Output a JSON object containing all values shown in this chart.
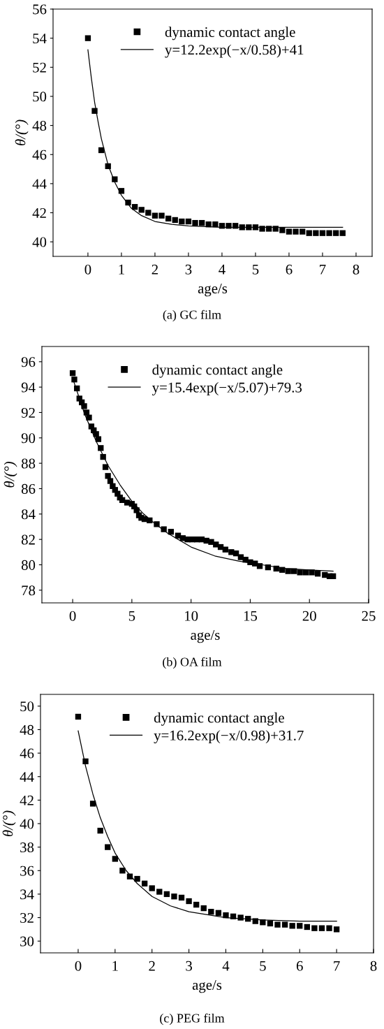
{
  "chart_data": [
    {
      "type": "scatter",
      "xlabel": "age/s",
      "ylabel": "θ/(°)",
      "xlim": [
        -1.04,
        8.48
      ],
      "ylim": [
        39,
        56
      ],
      "xticks": [
        0,
        1,
        2,
        3,
        4,
        5,
        6,
        7,
        8
      ],
      "yticks": [
        40,
        42,
        44,
        46,
        48,
        50,
        52,
        54,
        56
      ],
      "legend": "top",
      "grid": false,
      "annotations": [
        "(a) GC film"
      ],
      "series": [
        {
          "name": "dynamic contact angle",
          "marker": "square",
          "color": "#000000",
          "x": [
            0,
            0.2,
            0.4,
            0.6,
            0.8,
            1.0,
            1.2,
            1.4,
            1.6,
            1.8,
            2.0,
            2.2,
            2.4,
            2.6,
            2.8,
            3.0,
            3.2,
            3.4,
            3.6,
            3.8,
            4.0,
            4.2,
            4.4,
            4.6,
            4.8,
            5.0,
            5.2,
            5.4,
            5.6,
            5.8,
            6.0,
            6.2,
            6.4,
            6.6,
            6.8,
            7.0,
            7.2,
            7.4,
            7.6
          ],
          "values": [
            54,
            49,
            46.3,
            45.2,
            44.3,
            43.5,
            42.7,
            42.4,
            42.2,
            42.0,
            41.8,
            41.8,
            41.6,
            41.5,
            41.4,
            41.4,
            41.3,
            41.3,
            41.2,
            41.2,
            41.1,
            41.1,
            41.1,
            41.0,
            41.0,
            41.0,
            40.9,
            40.9,
            40.9,
            40.8,
            40.7,
            40.7,
            40.7,
            40.6,
            40.6,
            40.6,
            40.6,
            40.6,
            40.6
          ]
        },
        {
          "name": "y=12.2exp(−x/0.58)+41",
          "type": "line",
          "marker": "none",
          "line_style": "solid",
          "color": "#000000",
          "x": [
            0,
            0.1,
            0.2,
            0.3,
            0.4,
            0.6,
            0.8,
            1.0,
            1.3,
            1.6,
            2.0,
            2.5,
            3.0,
            4.0,
            5.0,
            7.6
          ],
          "values": [
            53.2,
            51.3,
            49.6,
            48.3,
            47.1,
            45.3,
            44.1,
            43.2,
            42.3,
            41.8,
            41.4,
            41.2,
            41.1,
            41.0,
            41.0,
            41.0
          ]
        }
      ]
    },
    {
      "type": "scatter",
      "xlabel": "age/s",
      "ylabel": "θ/(°)",
      "xlim": [
        -2.6,
        25
      ],
      "ylim": [
        77,
        97.2
      ],
      "xticks": [
        0,
        5,
        10,
        15,
        20,
        25
      ],
      "yticks": [
        78,
        80,
        82,
        84,
        86,
        88,
        90,
        92,
        94,
        96
      ],
      "legend": "top",
      "grid": false,
      "annotations": [
        "(b) OA film"
      ],
      "series": [
        {
          "name": "dynamic contact angle",
          "marker": "square",
          "color": "#000000",
          "x": [
            0,
            0.14,
            0.36,
            0.57,
            0.77,
            0.97,
            1.17,
            1.38,
            1.58,
            1.78,
            1.98,
            2.17,
            2.37,
            2.57,
            2.77,
            2.98,
            3.18,
            3.38,
            3.58,
            3.79,
            3.99,
            4.19,
            4.6,
            5.0,
            5.2,
            5.4,
            5.6,
            5.8,
            6.07,
            6.5,
            7.1,
            7.7,
            8.3,
            8.9,
            9.3,
            9.7,
            10.1,
            10.5,
            10.9,
            11.3,
            11.7,
            12.1,
            12.5,
            12.9,
            13.4,
            13.8,
            14.2,
            14.6,
            15.0,
            15.4,
            15.8,
            16.5,
            17.2,
            17.7,
            18.2,
            18.7,
            19.2,
            19.7,
            20.2,
            20.7,
            21.3,
            21.7,
            22.0
          ],
          "values": [
            95.1,
            94.6,
            93.9,
            93.1,
            92.8,
            92.5,
            92.0,
            91.6,
            90.9,
            90.6,
            90.3,
            89.9,
            89.2,
            88.5,
            87.7,
            87.0,
            86.6,
            86.2,
            85.9,
            85.6,
            85.3,
            85.1,
            84.9,
            84.8,
            84.6,
            84.3,
            83.9,
            83.7,
            83.6,
            83.5,
            83.2,
            82.8,
            82.6,
            82.3,
            82.1,
            82.0,
            82.0,
            82.0,
            82.0,
            81.9,
            81.8,
            81.6,
            81.4,
            81.2,
            81.0,
            80.9,
            80.6,
            80.4,
            80.2,
            80.1,
            79.9,
            79.8,
            79.7,
            79.6,
            79.5,
            79.5,
            79.4,
            79.4,
            79.4,
            79.3,
            79.2,
            79.1,
            79.1
          ]
        },
        {
          "name": "y=15.4exp(−x/5.07)+79.3",
          "type": "line",
          "marker": "none",
          "line_style": "solid",
          "color": "#000000",
          "x": [
            0,
            1,
            2,
            3,
            4,
            5,
            6,
            7,
            8,
            10,
            12,
            14,
            16,
            18,
            20,
            22
          ],
          "values": [
            94.7,
            91.9,
            89.7,
            87.8,
            86.3,
            85.0,
            84.0,
            83.2,
            82.5,
            81.4,
            80.7,
            80.3,
            80.0,
            79.7,
            79.6,
            79.5
          ]
        }
      ]
    },
    {
      "type": "scatter",
      "xlabel": "age/s",
      "ylabel": "θ/(°)",
      "xlim": [
        -1.02,
        8
      ],
      "ylim": [
        29,
        51
      ],
      "xticks": [
        0,
        1,
        2,
        3,
        4,
        5,
        6,
        7,
        8
      ],
      "yticks": [
        30,
        32,
        34,
        36,
        38,
        40,
        42,
        44,
        46,
        48,
        50
      ],
      "legend": "top",
      "grid": false,
      "annotations": [
        "(c) PEG film"
      ],
      "series": [
        {
          "name": "dynamic contact angle",
          "marker": "square",
          "color": "#000000",
          "x": [
            0,
            0.2,
            0.4,
            0.6,
            0.8,
            1.0,
            1.2,
            1.4,
            1.6,
            1.8,
            2.0,
            2.2,
            2.4,
            2.6,
            2.8,
            3.0,
            3.2,
            3.4,
            3.6,
            3.8,
            4.0,
            4.2,
            4.4,
            4.6,
            4.8,
            5.0,
            5.2,
            5.4,
            5.6,
            5.8,
            6.0,
            6.2,
            6.4,
            6.6,
            6.8,
            7.0
          ],
          "values": [
            49.1,
            45.3,
            41.7,
            39.4,
            38.0,
            37.0,
            36.0,
            35.5,
            35.3,
            34.9,
            34.5,
            34.2,
            34.0,
            33.8,
            33.7,
            33.4,
            33.1,
            32.8,
            32.5,
            32.4,
            32.2,
            32.1,
            32.0,
            31.9,
            31.7,
            31.6,
            31.5,
            31.4,
            31.4,
            31.3,
            31.3,
            31.2,
            31.1,
            31.1,
            31.1,
            31.0
          ]
        },
        {
          "name": "y=16.2exp(−x/0.98)+31.7",
          "type": "line",
          "marker": "none",
          "line_style": "solid",
          "color": "#000000",
          "x": [
            0,
            0.2,
            0.4,
            0.6,
            0.8,
            1.0,
            1.3,
            1.6,
            2.0,
            2.5,
            3.0,
            4.0,
            5.0,
            6.0,
            7.0
          ],
          "values": [
            47.9,
            44.9,
            42.5,
            40.5,
            38.9,
            37.5,
            36.0,
            34.9,
            33.8,
            33.0,
            32.5,
            32.0,
            31.8,
            31.7,
            31.7
          ]
        }
      ]
    }
  ]
}
